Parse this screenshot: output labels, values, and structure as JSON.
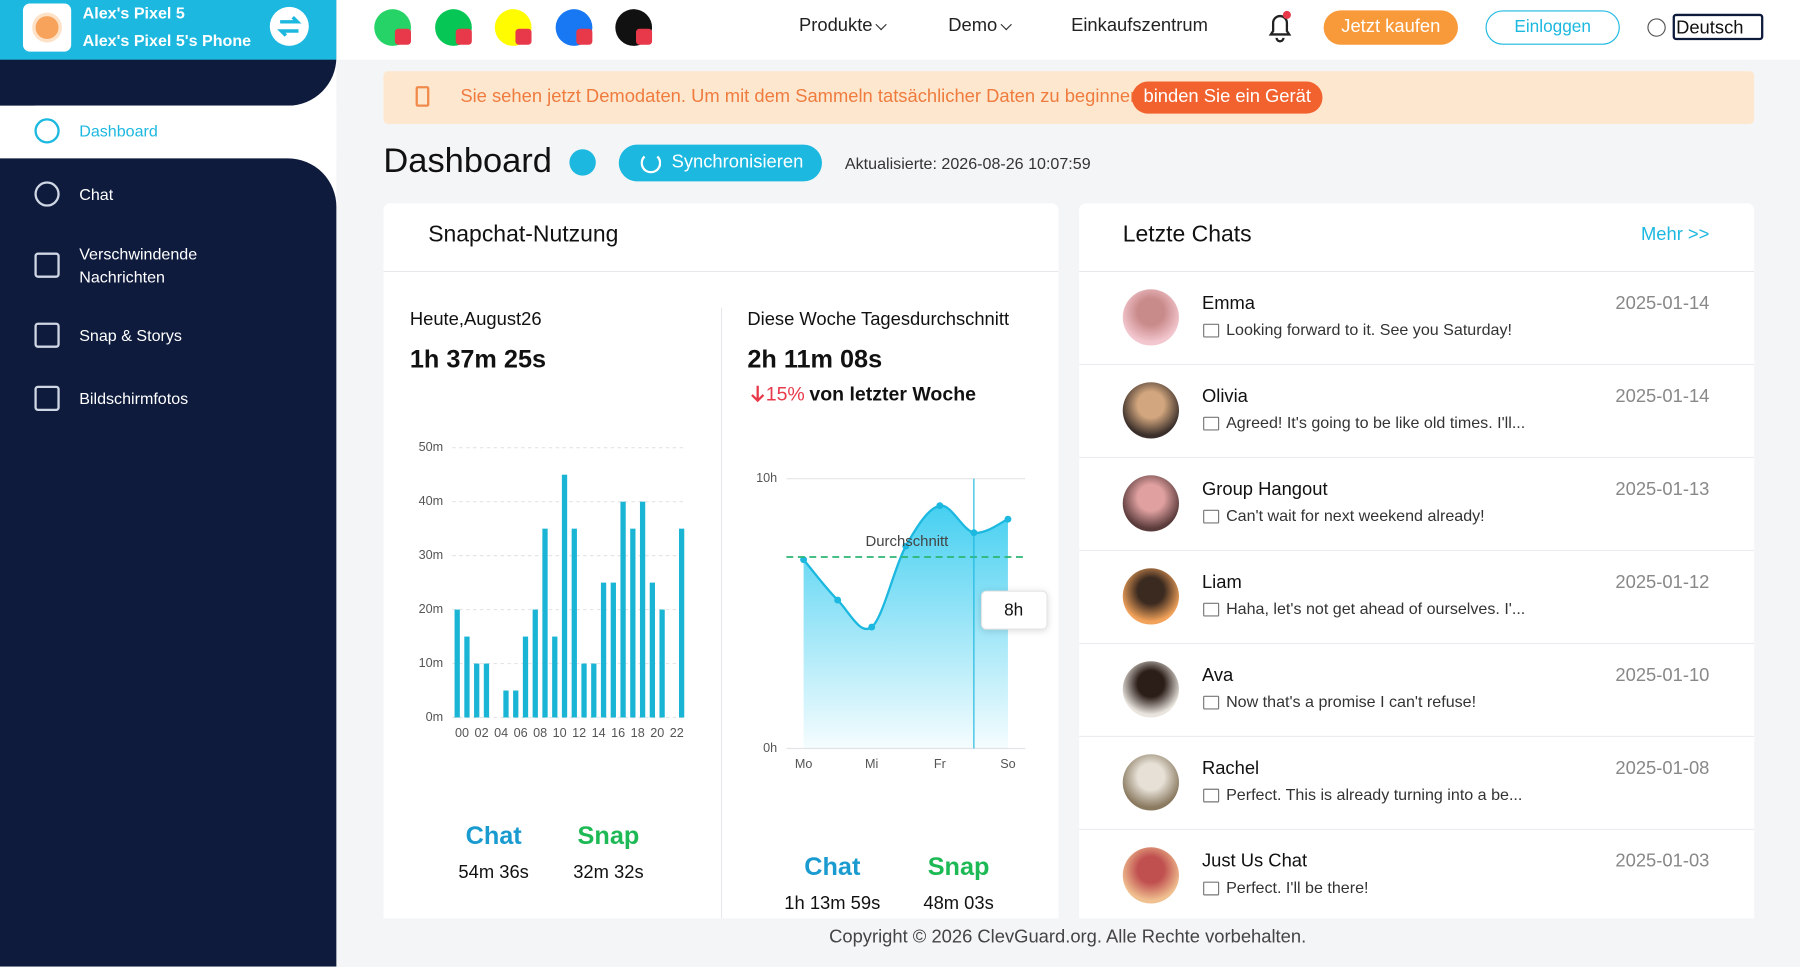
{
  "sidebar": {
    "device_name": "Alex's Pixel 5",
    "device_phone": "Alex's Pixel 5's Phone",
    "menu": [
      "Dashboard",
      "Chat",
      "Verschwindende Nachrichten",
      "Snap & Storys",
      "Bildschirmfotos"
    ]
  },
  "topbar": {
    "nav": [
      "Produkte",
      "Demo",
      "Einkaufszentrum"
    ],
    "buy": "Jetzt kaufen",
    "login": "Einloggen",
    "language": "Deutsch"
  },
  "banner": {
    "text": "Sie sehen jetzt Demodaten. Um mit dem Sammeln tatsächlicher Daten zu beginnen,",
    "button": "binden Sie ein Gerät"
  },
  "header": {
    "title": "Dashboard",
    "sync": "Synchronisieren",
    "updated": "Aktualisierte: 2026-08-26 10:07:59"
  },
  "usage": {
    "title": "Snapchat-Nutzung",
    "today": {
      "label": "Heute,August26",
      "total": "1h 37m 25s",
      "chat_label": "Chat",
      "chat": "54m 36s",
      "snap_label": "Snap",
      "snap": "32m 32s"
    },
    "week": {
      "label": "Diese Woche Tagesdurchschnitt",
      "total": "2h 11m 08s",
      "change": "15%",
      "change_text": "von letzter Woche",
      "chat_label": "Chat",
      "chat": "1h 13m 59s",
      "snap_label": "Snap",
      "snap": "48m 03s"
    }
  },
  "chart_data": [
    {
      "type": "bar",
      "categories": [
        "00",
        null,
        "02",
        null,
        "04",
        null,
        "06",
        null,
        "08",
        null,
        "10",
        null,
        "12",
        null,
        "14",
        null,
        "16",
        null,
        "18",
        null,
        "20",
        null,
        "22",
        null
      ],
      "values": [
        20,
        15,
        10,
        10,
        0,
        5,
        5,
        15,
        20,
        35,
        15,
        45,
        35,
        10,
        10,
        25,
        25,
        40,
        35,
        40,
        25,
        20,
        0,
        35
      ],
      "color": "#1ab4d4",
      "ylim": [
        0,
        50
      ],
      "yticks": [
        {
          "value": 0,
          "label": "0m"
        },
        {
          "value": 10,
          "label": "10m"
        },
        {
          "value": 20,
          "label": "20m"
        },
        {
          "value": 30,
          "label": "30m"
        },
        {
          "value": 40,
          "label": "40m"
        },
        {
          "value": 50,
          "label": "50m"
        }
      ],
      "grid": true
    },
    {
      "type": "line",
      "categories": [
        "Mo",
        null,
        "Mi",
        null,
        "Fr",
        null,
        "So"
      ],
      "values": [
        7,
        5.5,
        4.5,
        7.5,
        9,
        8,
        8.5
      ],
      "color": "#1cb8e0",
      "ylim": [
        0,
        10
      ],
      "yticks": [
        {
          "value": 0,
          "label": "0h"
        },
        {
          "value": 10,
          "label": "10h"
        }
      ],
      "average": 7.1,
      "average_label": "Durchschnitt",
      "average_color": "#2bb673",
      "tooltip": "8h"
    }
  ],
  "chats": {
    "title": "Letzte Chats",
    "more": "Mehr >>",
    "items": [
      {
        "name": "Emma",
        "message": "Looking forward to it. See you Saturday!",
        "date": "2025-01-14"
      },
      {
        "name": "Olivia",
        "message": "Agreed! It's going to be like old times. I'll...",
        "date": "2025-01-14"
      },
      {
        "name": "Group Hangout",
        "message": "Can't wait for next weekend already!",
        "date": "2025-01-13"
      },
      {
        "name": "Liam",
        "message": "Haha, let's not get ahead of ourselves. I'...",
        "date": "2025-01-12"
      },
      {
        "name": "Ava",
        "message": "Now that's a promise I can't refuse!",
        "date": "2025-01-10"
      },
      {
        "name": "Rachel",
        "message": "Perfect. This is already turning into a be...",
        "date": "2025-01-08"
      },
      {
        "name": "Just Us Chat",
        "message": "Perfect. I'll be there!",
        "date": "2025-01-03"
      }
    ]
  },
  "footer": "Copyright © 2026 ClevGuard.org. Alle Rechte vorbehalten."
}
